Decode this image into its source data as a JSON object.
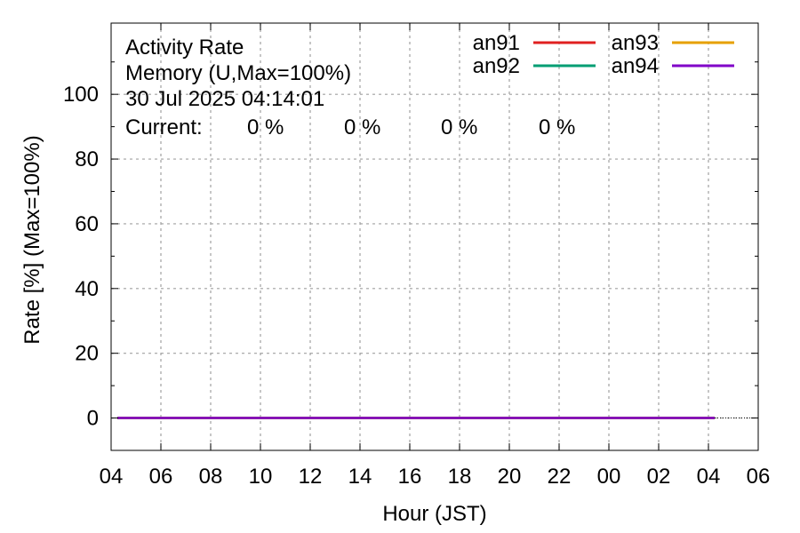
{
  "chart_data": {
    "type": "line",
    "title_lines": [
      "Activity Rate",
      "Memory (U,Max=100%)",
      "30 Jul 2025 04:14:01"
    ],
    "current_label": "Current:",
    "xlabel": "Hour (JST)",
    "ylabel": "Rate [%]  (Max=100%)",
    "x_tick_labels": [
      "04",
      "06",
      "08",
      "10",
      "12",
      "14",
      "16",
      "18",
      "20",
      "22",
      "00",
      "02",
      "04",
      "06"
    ],
    "y_ticks": [
      0,
      20,
      40,
      60,
      80,
      100
    ],
    "ylim": [
      -10,
      122
    ],
    "x_hours_range": [
      0,
      26
    ],
    "grid": true,
    "legend_position": "top-right",
    "series": [
      {
        "name": "an91",
        "color": "#e02020",
        "current": "0 %",
        "x_hours": [
          0.25,
          24.25
        ],
        "values": [
          0,
          0
        ]
      },
      {
        "name": "an92",
        "color": "#009e73",
        "current": "0 %",
        "x_hours": [
          0.25,
          24.25
        ],
        "values": [
          0,
          0
        ]
      },
      {
        "name": "an93",
        "color": "#e6a000",
        "current": "0 %",
        "x_hours": [
          0.25,
          24.25
        ],
        "values": [
          0,
          0
        ]
      },
      {
        "name": "an94",
        "color": "#8000c8",
        "current": "0 %",
        "x_hours": [
          0.25,
          24.25
        ],
        "values": [
          0,
          0
        ]
      }
    ]
  }
}
